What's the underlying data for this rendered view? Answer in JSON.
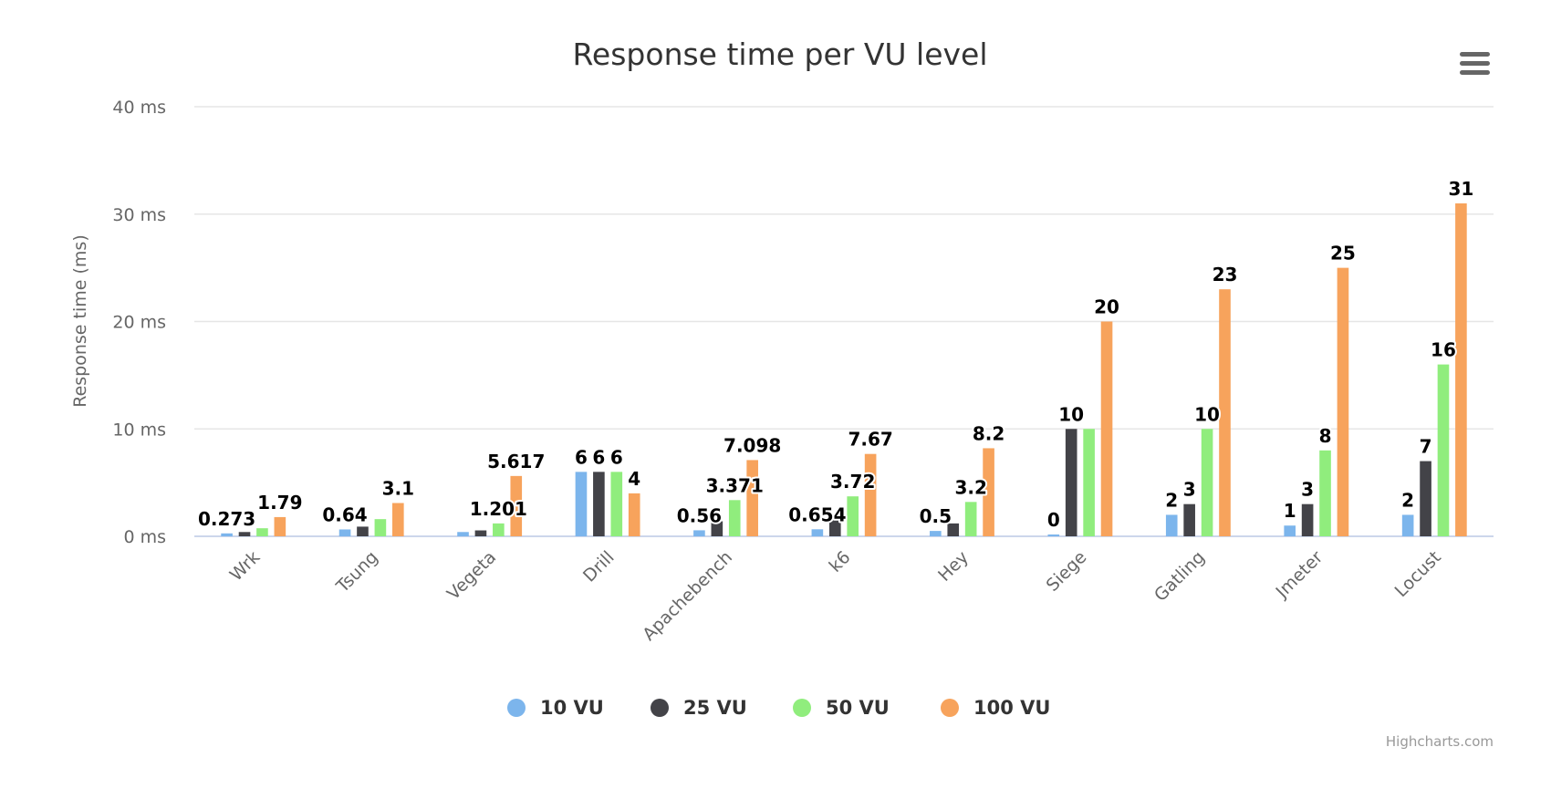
{
  "chart_data": {
    "type": "bar",
    "title": "Response time per VU level",
    "ylabel": "Response time (ms)",
    "xlabel": "",
    "ylim": [
      0,
      40
    ],
    "yticks": [
      0,
      10,
      20,
      30,
      40
    ],
    "ytick_labels": [
      "0 ms",
      "10 ms",
      "20 ms",
      "30 ms",
      "40 ms"
    ],
    "grid": true,
    "legend_position": "bottom",
    "categories": [
      "Wrk",
      "Tsung",
      "Vegeta",
      "Drill",
      "Apachebench",
      "k6",
      "Hey",
      "Siege",
      "Gatling",
      "Jmeter",
      "Locust"
    ],
    "series": [
      {
        "name": "10 VU",
        "color": "#7cb5ec",
        "values": [
          0.273,
          0.64,
          0.4,
          6,
          0.56,
          0.654,
          0.5,
          0,
          2,
          1,
          2
        ],
        "labels": [
          "0.273",
          "0.64",
          null,
          "6",
          "0.56",
          "0.654",
          "0.5",
          "0",
          "2",
          "1",
          "2"
        ]
      },
      {
        "name": "25 VU",
        "color": "#434348",
        "values": [
          0.4,
          0.9,
          0.55,
          6,
          1.4,
          1.7,
          1.2,
          10,
          3,
          3,
          7
        ],
        "labels": [
          null,
          null,
          null,
          "6",
          null,
          null,
          null,
          "10",
          "3",
          "3",
          "7"
        ]
      },
      {
        "name": "50 VU",
        "color": "#90ed7d",
        "values": [
          0.75,
          1.6,
          1.201,
          6,
          3.371,
          3.72,
          3.2,
          10,
          10,
          8,
          16
        ],
        "labels": [
          null,
          null,
          "1.201",
          "6",
          "3.371",
          "3.72",
          "3.2",
          null,
          "10",
          "8",
          "16"
        ]
      },
      {
        "name": "100 VU",
        "color": "#f7a35c",
        "values": [
          1.79,
          3.1,
          5.617,
          4,
          7.098,
          7.67,
          8.2,
          20,
          23,
          25,
          31
        ],
        "labels": [
          "1.79",
          "3.1",
          "5.617",
          "4",
          "7.098",
          "7.67",
          "8.2",
          "20",
          "23",
          "25",
          "31"
        ]
      }
    ]
  },
  "menu_icon": "hamburger-menu-icon",
  "credits": "Highcharts.com"
}
